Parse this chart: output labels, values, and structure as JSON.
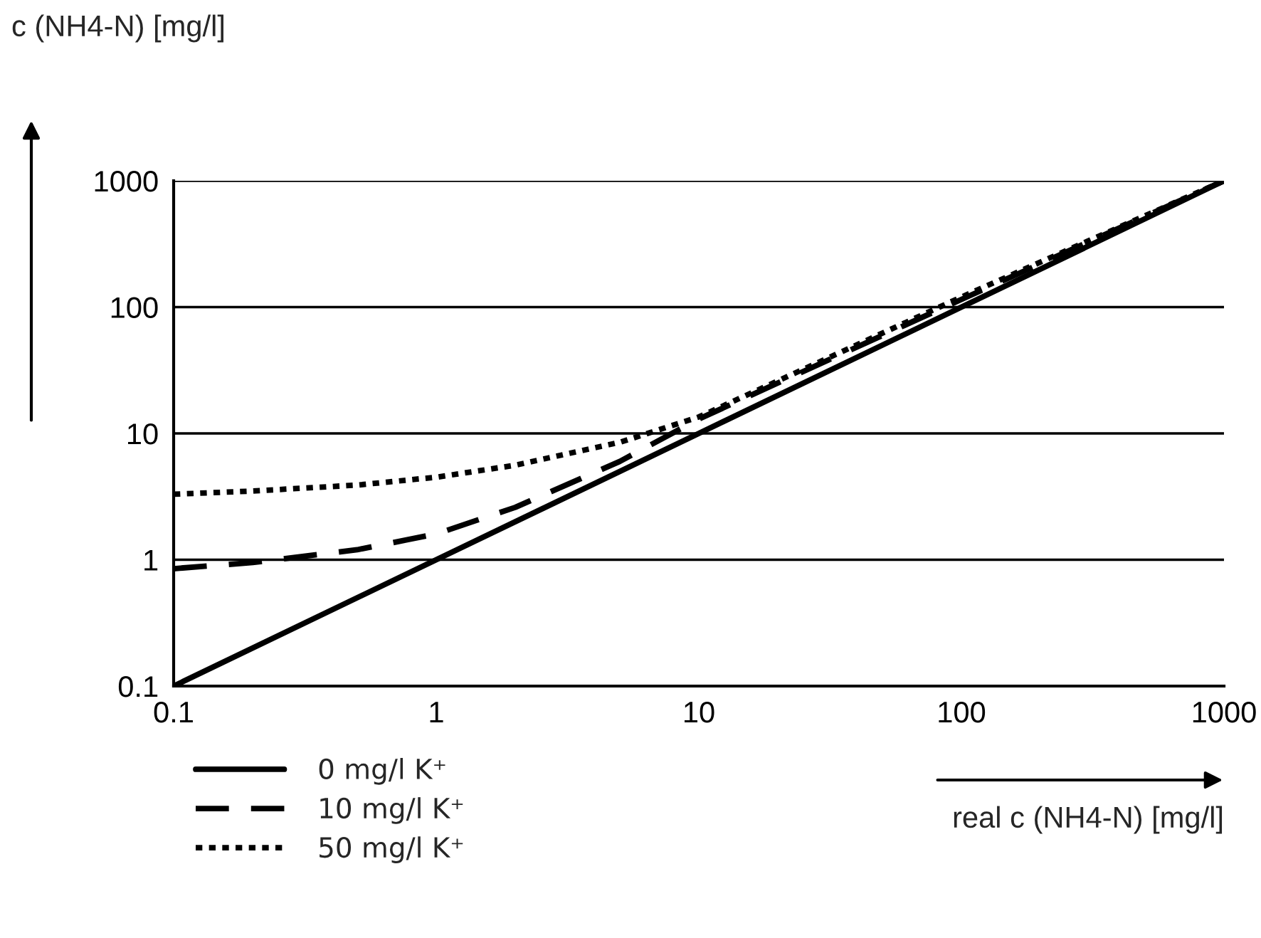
{
  "chart_data": {
    "type": "line",
    "ylabel": "c (NH4-N) [mg/l]",
    "xlabel": "real c (NH4-N) [mg/l]",
    "log": "xy",
    "xlim": [
      0.1,
      1000
    ],
    "xticks": [
      0.1,
      1,
      10,
      100,
      1000
    ],
    "ylim": [
      0.1,
      1000
    ],
    "yticks": [
      0.1,
      1,
      10,
      100,
      1000
    ],
    "grid": "y",
    "legend": "bottom left",
    "series": [
      {
        "name": "0 mg/l K⁺",
        "color": "#000000",
        "line_style": "solid",
        "x": [
          0.1,
          1,
          10,
          100,
          1000
        ],
        "values": [
          0.1,
          1,
          10,
          100,
          1000
        ]
      },
      {
        "name": "10 mg/l K⁺",
        "color": "#000000",
        "line_style": "dashed",
        "x": [
          0.1,
          0.2,
          0.5,
          1,
          2,
          5,
          10,
          100,
          1000
        ],
        "values": [
          0.85,
          0.95,
          1.2,
          1.6,
          2.6,
          6,
          13,
          115,
          1000
        ]
      },
      {
        "name": "50 mg/l K⁺",
        "color": "#000000",
        "line_style": "dotted",
        "x": [
          0.1,
          0.2,
          0.5,
          1,
          2,
          5,
          10,
          100,
          1000
        ],
        "values": [
          3.3,
          3.5,
          3.9,
          4.5,
          5.6,
          8.5,
          13.5,
          120,
          1000
        ]
      }
    ]
  }
}
